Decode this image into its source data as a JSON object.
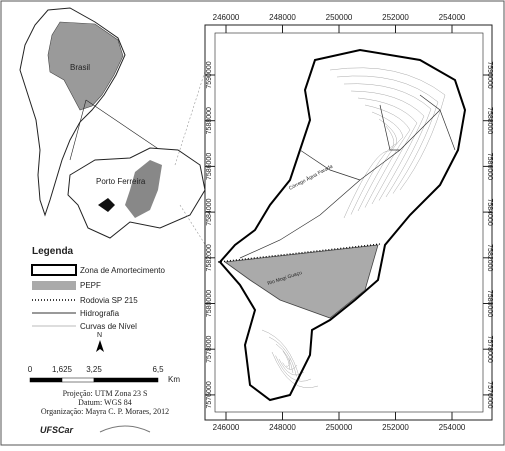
{
  "map": {
    "xticks": [
      246000,
      248000,
      250000,
      252000,
      254000
    ],
    "yticks": [
      7590000,
      7588000,
      7586000,
      7584000,
      7582000,
      7580000,
      7578000,
      7576000
    ],
    "labels": {
      "country": "Brasil",
      "city": "Porto Ferreira",
      "stream": "Córrego Água Parada",
      "river": "Rio Mogi Guaçu"
    }
  },
  "legend": {
    "title": "Legenda",
    "items": [
      "Zona de Amortecimento",
      "PEPF",
      "Rodovia SP 215",
      "Hidrografia",
      "Curvas de Nível"
    ]
  },
  "north": "N",
  "scale": {
    "labels": [
      "0",
      "1,625",
      "3,25",
      "6,5"
    ],
    "unit": "Km"
  },
  "credits": [
    "Projeção: UTM Zona 23 S",
    "Datum: WGS 84",
    "Organização: Mayra C. P. Moraes, 2012"
  ],
  "logos": [
    "UFSCar"
  ]
}
